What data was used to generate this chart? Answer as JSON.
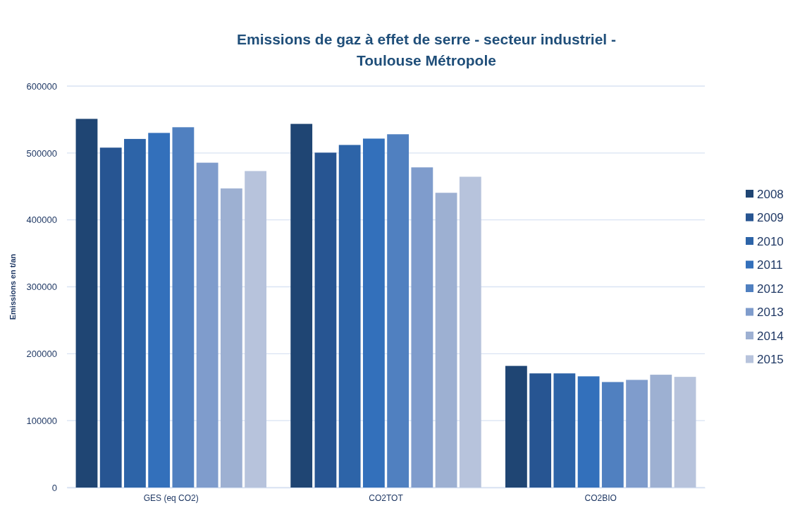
{
  "chart_data": {
    "type": "bar",
    "title": "Emissions  de gaz à effet de serre - secteur industriel -\nToulouse  Métropole",
    "ylabel": "Emissions en t/an",
    "categories": [
      "GES (eq CO2)",
      "CO2TOT",
      "CO2BIO"
    ],
    "series": [
      {
        "name": "2008",
        "color": "#1f4573",
        "values": [
          551000,
          543500,
          181800
        ]
      },
      {
        "name": "2009",
        "color": "#275592",
        "values": [
          508000,
          500500,
          170600
        ]
      },
      {
        "name": "2010",
        "color": "#2d64a8",
        "values": [
          521000,
          512000,
          170600
        ]
      },
      {
        "name": "2011",
        "color": "#3370bb",
        "values": [
          530000,
          521500,
          166200
        ]
      },
      {
        "name": "2012",
        "color": "#5080c0",
        "values": [
          538500,
          528000,
          157700
        ]
      },
      {
        "name": "2013",
        "color": "#7f9ccc",
        "values": [
          485500,
          478500,
          160900
        ]
      },
      {
        "name": "2014",
        "color": "#9db0d2",
        "values": [
          447000,
          440500,
          168600
        ]
      },
      {
        "name": "2015",
        "color": "#b7c3dc",
        "values": [
          473000,
          464500,
          165400
        ]
      }
    ],
    "ylim": [
      0,
      600000
    ],
    "yticks": [
      0,
      100000,
      200000,
      300000,
      400000,
      500000,
      600000
    ],
    "grid": "y",
    "legend": "right"
  }
}
